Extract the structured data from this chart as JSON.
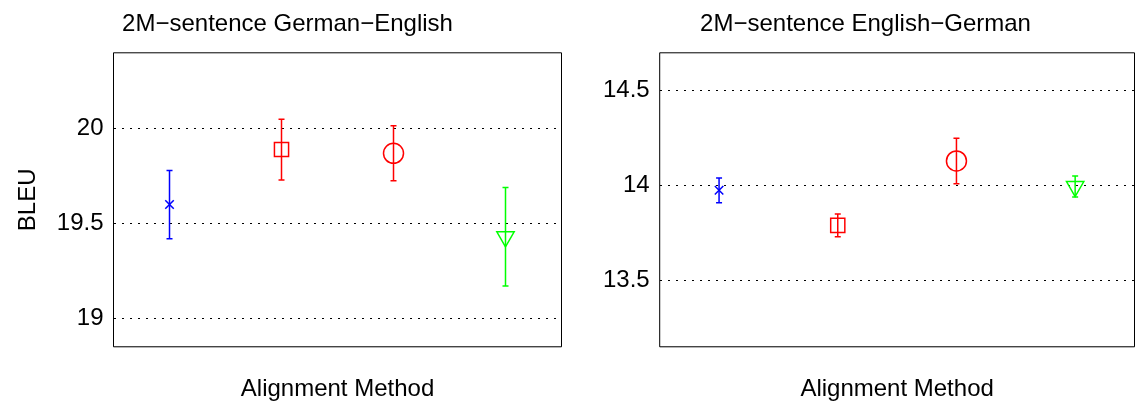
{
  "chart_data": [
    {
      "type": "scatter",
      "title": "2M−sentence German−English",
      "xlabel": "Alignment Method",
      "ylabel": "BLEU",
      "categories": [
        null,
        null,
        null,
        null
      ],
      "ylim": [
        18.85,
        20.4
      ],
      "yticks": [
        19,
        19.5,
        20
      ],
      "grid": "y",
      "legend": false,
      "series": [
        {
          "color": "#0000ff",
          "marker": "cross",
          "values": [
            19.6,
            null,
            null,
            null
          ],
          "errors": [
            0.18,
            null,
            null,
            null
          ]
        },
        {
          "color": "#ff0000",
          "marker": "square",
          "values": [
            null,
            19.89,
            null,
            null
          ],
          "errors": [
            null,
            0.16,
            null,
            null
          ]
        },
        {
          "color": "#ff0000",
          "marker": "circle",
          "values": [
            null,
            null,
            19.87,
            null
          ],
          "errors": [
            null,
            null,
            0.145,
            null
          ]
        },
        {
          "color": "#00ff00",
          "marker": "triangle",
          "values": [
            null,
            null,
            null,
            19.43
          ],
          "errors": [
            null,
            null,
            null,
            0.26
          ]
        }
      ]
    },
    {
      "type": "scatter",
      "title": "2M−sentence English−German",
      "xlabel": "Alignment Method",
      "categories": [
        null,
        null,
        null,
        null
      ],
      "ylim": [
        13.15,
        14.7
      ],
      "yticks": [
        13.5,
        14,
        14.5
      ],
      "grid": "y",
      "legend": false,
      "series": [
        {
          "color": "#0000ff",
          "marker": "cross",
          "values": [
            13.975,
            null,
            null,
            null
          ],
          "errors": [
            0.065,
            null,
            null,
            null
          ]
        },
        {
          "color": "#ff0000",
          "marker": "square",
          "values": [
            null,
            13.79,
            null,
            null
          ],
          "errors": [
            null,
            0.06,
            null,
            null
          ]
        },
        {
          "color": "#ff0000",
          "marker": "circle",
          "values": [
            null,
            null,
            14.13,
            null
          ],
          "errors": [
            null,
            null,
            0.12,
            null
          ]
        },
        {
          "color": "#00ff00",
          "marker": "triangle",
          "values": [
            null,
            null,
            null,
            13.995
          ],
          "errors": [
            null,
            null,
            null,
            0.055
          ]
        }
      ]
    }
  ]
}
